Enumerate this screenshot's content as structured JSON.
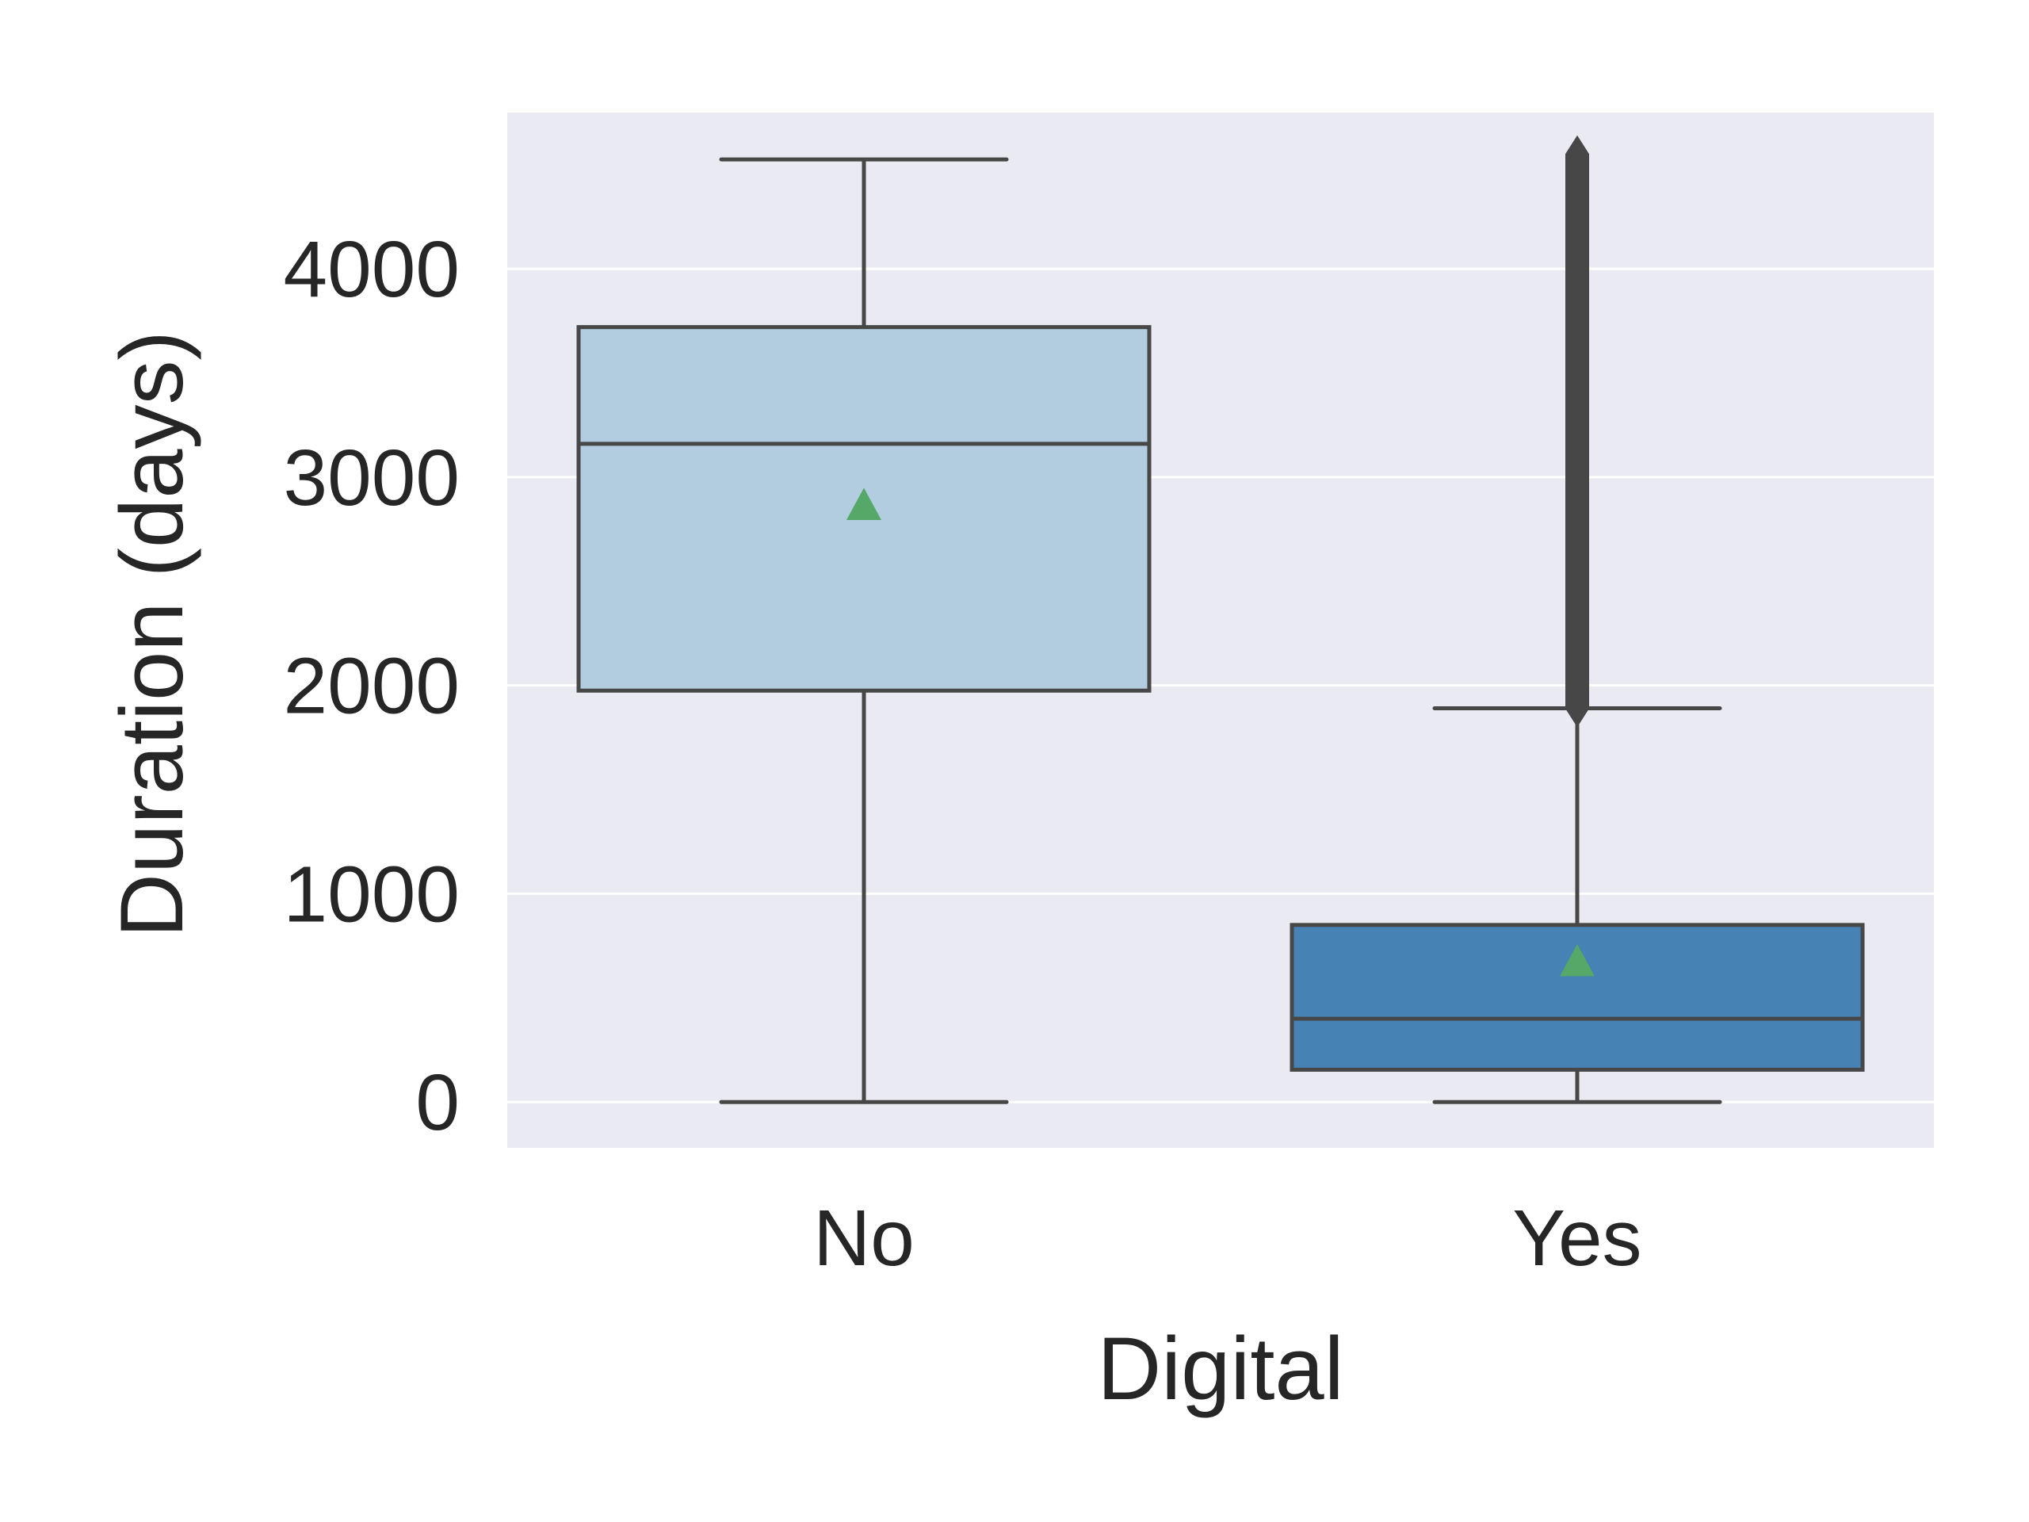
{
  "chart_data": {
    "type": "box",
    "xlabel": "Digital",
    "ylabel": "Duration (days)",
    "categories": [
      "No",
      "Yes"
    ],
    "ylim": [
      -220,
      4750
    ],
    "yticks": [
      0,
      1000,
      2000,
      3000,
      4000
    ],
    "grid": true,
    "show_means": true,
    "boxes": [
      {
        "category": "No",
        "whisker_low": 0,
        "q1": 1975,
        "median": 3160,
        "q3": 3720,
        "whisker_high": 4525,
        "mean": 2865,
        "color": "#b3cde0"
      },
      {
        "category": "Yes",
        "whisker_low": 0,
        "q1": 155,
        "median": 400,
        "q3": 850,
        "whisker_high": 1890,
        "mean": 675,
        "outlier_range": [
          1890,
          4550
        ],
        "color": "#4682b4"
      }
    ],
    "colors": {
      "background": "#eaeaf2",
      "grid": "#ffffff",
      "line": "#474747",
      "mean_marker": "#55a868"
    }
  }
}
